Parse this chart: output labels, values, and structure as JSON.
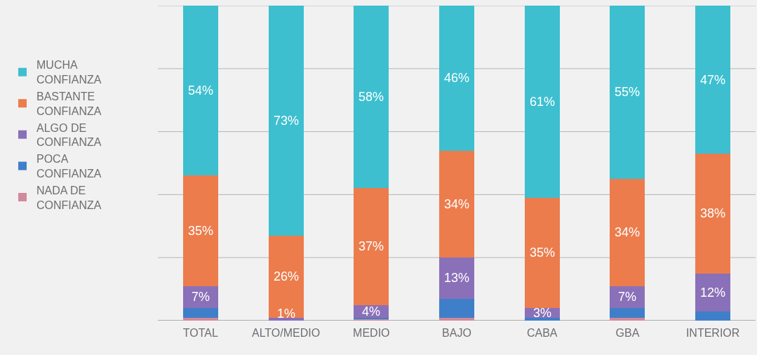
{
  "chart_data": {
    "type": "bar",
    "stacked": true,
    "categories": [
      "TOTAL",
      "ALTO/MEDIO",
      "MEDIO",
      "BAJO",
      "CABA",
      "GBA",
      "INTERIOR"
    ],
    "series": [
      {
        "name": "NADA DE CONFIANZA",
        "color": "#d08a9c",
        "values": [
          1,
          0,
          0.5,
          1,
          0,
          1,
          0
        ],
        "value_labels": [
          null,
          null,
          null,
          null,
          null,
          null,
          null
        ]
      },
      {
        "name": "POCA CONFIANZA",
        "color": "#3f7fca",
        "values": [
          3,
          0,
          0.5,
          6,
          1,
          3,
          3
        ],
        "value_labels": [
          null,
          null,
          null,
          null,
          null,
          null,
          null
        ]
      },
      {
        "name": "ALGO DE CONFIANZA",
        "color": "#8a70b8",
        "values": [
          7,
          1,
          4,
          13,
          3,
          7,
          12
        ],
        "value_labels": [
          "7%",
          "1%",
          "4%",
          "13%",
          "3%",
          "7%",
          "12%"
        ]
      },
      {
        "name": "BASTANTE CONFIANZA",
        "color": "#ec7c4c",
        "values": [
          35,
          26,
          37,
          34,
          35,
          34,
          38
        ],
        "value_labels": [
          "35%",
          "26%",
          "37%",
          "34%",
          "35%",
          "34%",
          "38%"
        ]
      },
      {
        "name": "MUCHA CONFIANZA",
        "color": "#3dbfd0",
        "values": [
          54,
          73,
          58,
          46,
          61,
          55,
          47
        ],
        "value_labels": [
          "54%",
          "73%",
          "58%",
          "46%",
          "61%",
          "55%",
          "47%"
        ]
      }
    ],
    "ylim": [
      0,
      100
    ],
    "yticks": [
      {
        "value": 0,
        "label": null
      },
      {
        "value": 20,
        "label": null
      },
      {
        "value": 40,
        "label": null
      },
      {
        "value": 60,
        "label": null
      },
      {
        "value": 80,
        "label": null
      },
      {
        "value": 100,
        "label": null
      }
    ],
    "tick_labels": "x",
    "grid": "y",
    "legend": "left"
  }
}
